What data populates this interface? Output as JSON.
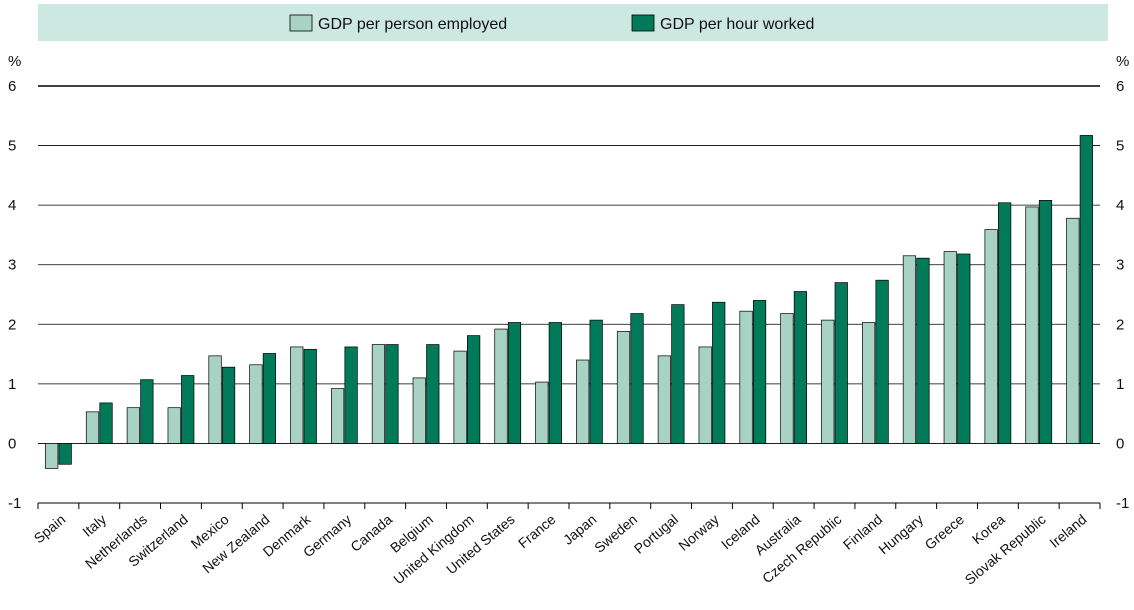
{
  "chart_data": {
    "type": "bar",
    "unit": "%",
    "ylim": [
      -1,
      6
    ],
    "yticks": [
      -1,
      0,
      1,
      2,
      3,
      4,
      5,
      6
    ],
    "grid": true,
    "legend_position": "top",
    "categories": [
      "Spain",
      "Italy",
      "Netherlands",
      "Switzerland",
      "Mexico",
      "New Zealand",
      "Denmark",
      "Germany",
      "Canada",
      "Belgium",
      "United Kingdom",
      "United States",
      "France",
      "Japan",
      "Sweden",
      "Portugal",
      "Norway",
      "Iceland",
      "Australia",
      "Czech Republic",
      "Finland",
      "Hungary",
      "Greece",
      "Korea",
      "Slovak Republic",
      "Ireland"
    ],
    "series": [
      {
        "name": "GDP per person employed",
        "color": "#a8d3c4",
        "values": [
          -0.42,
          0.53,
          0.6,
          0.6,
          1.47,
          1.32,
          1.62,
          0.92,
          1.66,
          1.1,
          1.55,
          1.92,
          1.03,
          1.4,
          1.88,
          1.47,
          1.62,
          2.22,
          2.18,
          2.07,
          2.03,
          3.15,
          3.22,
          3.59,
          3.97,
          3.78
        ]
      },
      {
        "name": "GDP per hour worked",
        "color": "#007a58",
        "values": [
          -0.35,
          0.68,
          1.07,
          1.14,
          1.28,
          1.51,
          1.58,
          1.62,
          1.66,
          1.66,
          1.81,
          2.03,
          2.03,
          2.07,
          2.18,
          2.33,
          2.37,
          2.4,
          2.55,
          2.7,
          2.74,
          3.11,
          3.18,
          4.04,
          4.08,
          5.17
        ]
      }
    ]
  },
  "colors": {
    "legend_band": "#cde8e1",
    "bar_outline": "#000000",
    "grid": "#000000"
  }
}
